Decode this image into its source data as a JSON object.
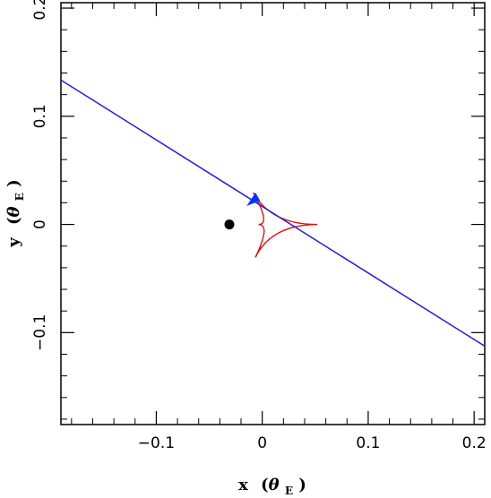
{
  "chart_data": {
    "type": "line",
    "xlabel": {
      "main": "x",
      "theta": "θ",
      "sub": "E"
    },
    "ylabel": {
      "main": "y",
      "theta": "θ",
      "sub": "E"
    },
    "xlim": [
      -0.19,
      0.21
    ],
    "ylim": [
      -0.185,
      0.205
    ],
    "x_ticks": [
      {
        "value": -0.1,
        "label": "−0.1"
      },
      {
        "value": 0,
        "label": "0"
      },
      {
        "value": 0.1,
        "label": "0.1"
      },
      {
        "value": 0.2,
        "label": "0.2"
      }
    ],
    "y_ticks": [
      {
        "value": -0.1,
        "label": "−0.1"
      },
      {
        "value": 0,
        "label": "0"
      },
      {
        "value": 0.1,
        "label": "0.1"
      },
      {
        "value": 0.2,
        "label": "0.2"
      }
    ],
    "minor_tick_step": 0.02,
    "grid": false,
    "source_trajectory": {
      "color": "#2222cc",
      "points": [
        [
          -0.19,
          0.1335
        ],
        [
          0.21,
          -0.1125
        ]
      ]
    },
    "caustic": {
      "color": "#dd1111",
      "cusps": [
        [
          -0.0085,
          0.0295
        ],
        [
          0.052,
          0.0
        ],
        [
          -0.0065,
          -0.0305
        ],
        [
          -0.0035,
          0.0
        ]
      ]
    },
    "lens": {
      "x": -0.031,
      "y": 0.0,
      "color": "#000000"
    },
    "source": {
      "x": -0.008,
      "y": 0.0195,
      "color": "#0033ff"
    }
  }
}
